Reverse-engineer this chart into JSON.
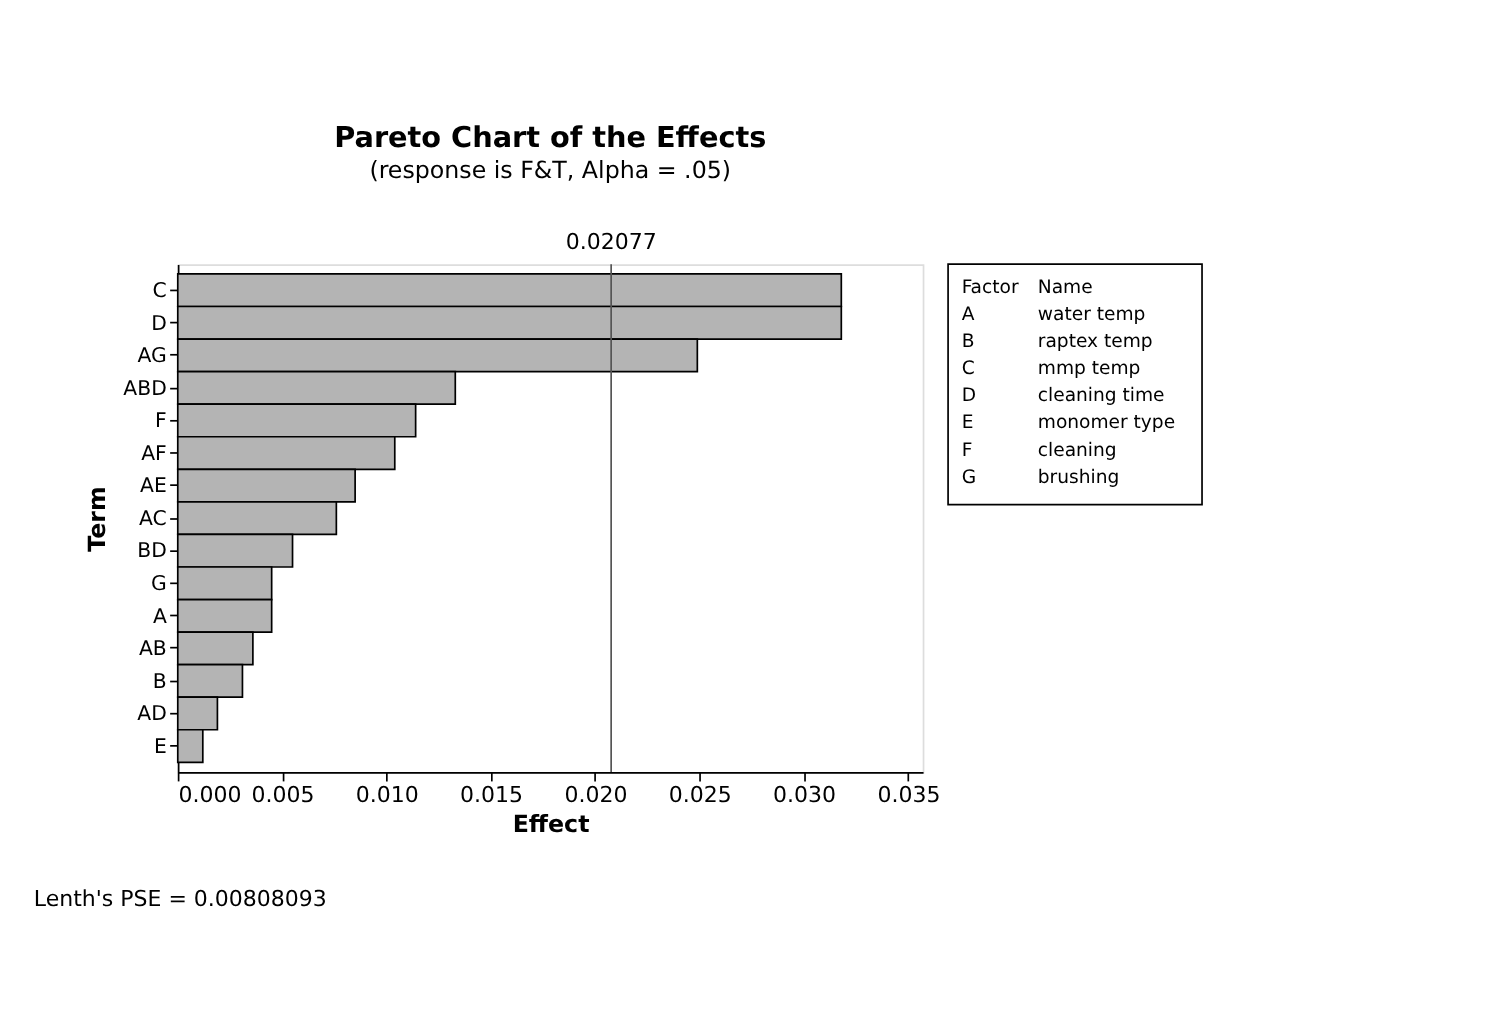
{
  "chart_data": {
    "type": "bar",
    "orientation": "horizontal",
    "title": "Pareto Chart of the Effects",
    "subtitle": "(response is F&T, Alpha = .05)",
    "xlabel": "Effect",
    "ylabel": "Term",
    "categories": [
      "C",
      "D",
      "AG",
      "ABD",
      "F",
      "AF",
      "AE",
      "AC",
      "BD",
      "G",
      "A",
      "AB",
      "B",
      "AD",
      "E"
    ],
    "values": [
      0.0318,
      0.0318,
      0.0249,
      0.0133,
      0.0114,
      0.0104,
      0.0085,
      0.0076,
      0.0055,
      0.0045,
      0.0045,
      0.0036,
      0.0031,
      0.0019,
      0.0012
    ],
    "color": "#b4b4b4",
    "xlim": [
      0,
      0.0357
    ],
    "xticks": [
      {
        "value": 0,
        "label": "0.000"
      },
      {
        "value": 0.005,
        "label": "0.005"
      },
      {
        "value": 0.01,
        "label": "0.010"
      },
      {
        "value": 0.015,
        "label": "0.015"
      },
      {
        "value": 0.02,
        "label": "0.020"
      },
      {
        "value": 0.025,
        "label": "0.025"
      },
      {
        "value": 0.03,
        "label": "0.030"
      },
      {
        "value": 0.035,
        "label": "0.035"
      }
    ],
    "ref_lines": [
      {
        "axis": "x",
        "value": 0.02077,
        "label": "0.02077",
        "color": "#555555"
      }
    ],
    "grid": false,
    "annotations": [
      "Lenth's PSE = 0.00808093",
      "Factor",
      "Name",
      "A",
      "water temp",
      "B",
      "raptex temp",
      "C",
      "mmp temp",
      "D",
      "cleaning time",
      "E",
      "monomer type",
      "F",
      "cleaning",
      "G",
      "brushing"
    ]
  }
}
